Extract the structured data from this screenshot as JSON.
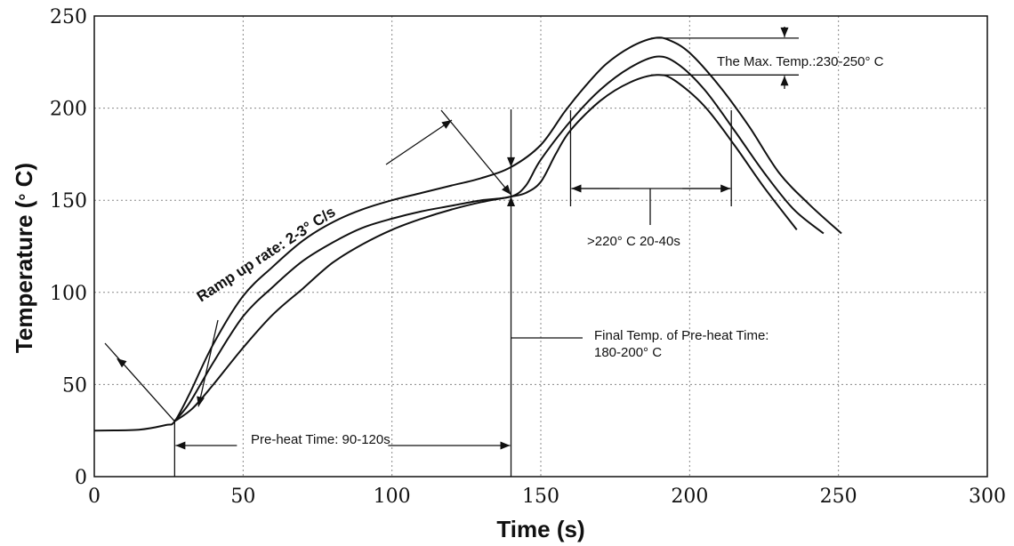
{
  "chart_data": {
    "type": "line",
    "title": "",
    "xlabel": "Time (s)",
    "ylabel": "Temperature (°C)",
    "ylabel_parts": {
      "main": "Temperature (",
      "degree": "°",
      "unit": " C)"
    },
    "xlim": [
      0,
      300
    ],
    "ylim": [
      0,
      250
    ],
    "xticks": [
      0,
      50,
      100,
      150,
      200,
      250,
      300
    ],
    "yticks": [
      0,
      50,
      100,
      150,
      200,
      250
    ],
    "grid": true,
    "series": [
      {
        "values": [
          [
            0,
            25
          ],
          [
            15,
            25.5
          ],
          [
            24,
            28
          ],
          [
            27,
            30
          ],
          [
            32,
            45
          ],
          [
            40,
            72
          ],
          [
            50,
            98
          ],
          [
            60,
            114
          ],
          [
            70,
            128
          ],
          [
            80,
            138
          ],
          [
            90,
            145
          ],
          [
            100,
            150
          ],
          [
            110,
            154
          ],
          [
            120,
            158
          ],
          [
            130,
            162
          ],
          [
            140,
            168
          ],
          [
            150,
            180
          ],
          [
            158,
            198
          ],
          [
            165,
            212
          ],
          [
            172,
            224
          ],
          [
            180,
            233
          ],
          [
            188,
            238
          ],
          [
            193,
            237
          ],
          [
            200,
            230
          ],
          [
            210,
            212
          ],
          [
            220,
            190
          ],
          [
            230,
            165
          ],
          [
            240,
            148
          ],
          [
            251,
            132
          ]
        ]
      },
      {
        "values": [
          [
            27,
            30
          ],
          [
            32,
            40
          ],
          [
            40,
            62
          ],
          [
            50,
            87
          ],
          [
            60,
            103
          ],
          [
            70,
            117
          ],
          [
            80,
            127
          ],
          [
            90,
            135
          ],
          [
            100,
            140
          ],
          [
            110,
            144
          ],
          [
            120,
            147
          ],
          [
            130,
            150
          ],
          [
            140,
            152
          ],
          [
            145,
            158
          ],
          [
            150,
            172
          ],
          [
            160,
            193
          ],
          [
            170,
            210
          ],
          [
            180,
            222
          ],
          [
            189,
            228
          ],
          [
            196,
            224
          ],
          [
            205,
            210
          ],
          [
            215,
            188
          ],
          [
            225,
            165
          ],
          [
            235,
            145
          ],
          [
            245,
            132
          ]
        ]
      },
      {
        "values": [
          [
            27,
            30
          ],
          [
            33,
            37
          ],
          [
            40,
            50
          ],
          [
            50,
            70
          ],
          [
            60,
            88
          ],
          [
            70,
            102
          ],
          [
            80,
            116
          ],
          [
            90,
            126
          ],
          [
            100,
            134
          ],
          [
            110,
            140
          ],
          [
            120,
            145
          ],
          [
            130,
            149
          ],
          [
            140,
            152
          ],
          [
            145,
            154
          ],
          [
            150,
            160
          ],
          [
            155,
            175
          ],
          [
            160,
            188
          ],
          [
            170,
            204
          ],
          [
            180,
            214
          ],
          [
            189,
            218
          ],
          [
            195,
            215
          ],
          [
            205,
            201
          ],
          [
            215,
            180
          ],
          [
            225,
            157
          ],
          [
            236,
            134
          ]
        ]
      }
    ],
    "annotations": {
      "ramp": "Ramp up rate: 2-3° C/s",
      "preheat_time": "Pre-heat Time: 90-120s",
      "final_temp_line1": "Final Temp. of Pre-heat Time:",
      "final_temp_line2": "180-200° C",
      "above220": ">220° C 20-40s",
      "max_temp": "The Max. Temp.:230-250° C"
    }
  }
}
